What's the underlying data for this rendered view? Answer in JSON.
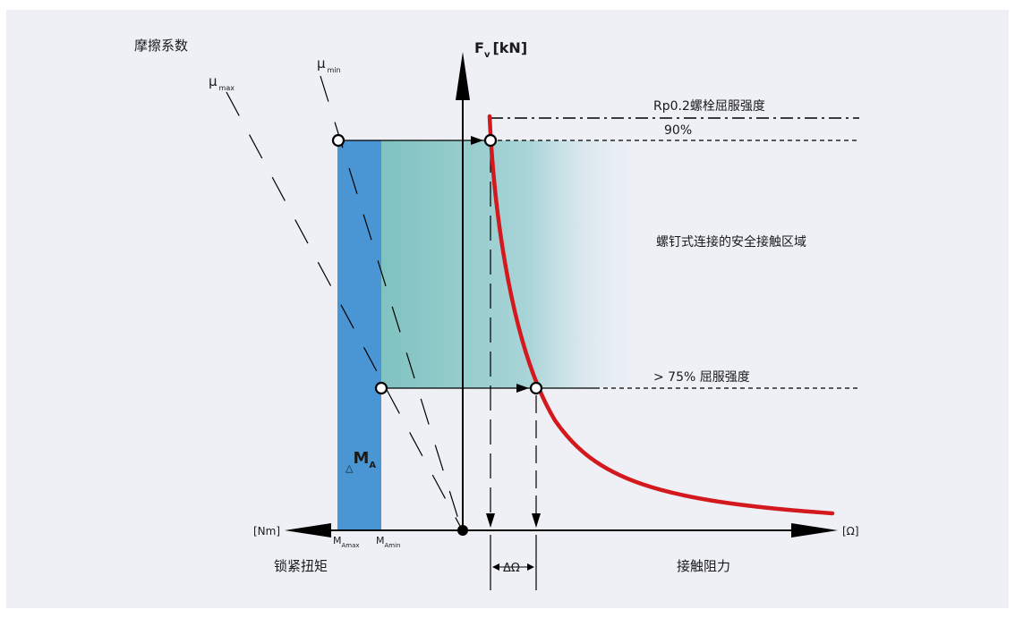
{
  "labels": {
    "friction_coefficient": "摩擦系数",
    "mu": "μ",
    "mu_max_sub": "max",
    "mu_min_sub": "min",
    "force_F": "F",
    "force_sub": "v",
    "force_unit": "[kN]",
    "yield_line": "Rp0.2螺栓屈服强度",
    "ninety_percent": "90%",
    "safe_zone": "螺钉式连接的安全接触区域",
    "seventy_five": "> 75% 屈服强度",
    "delta_symbol": "△",
    "delta_m": "M",
    "delta_m_sub": "A",
    "torque_unit": "[Nm]",
    "ma_M": "M",
    "ma_max_sub": "Amax",
    "ma_min_sub": "Amin",
    "omega_unit": "[Ω]",
    "delta_omega": "ΔΩ",
    "locking_torque": "锁紧扭矩",
    "contact_resistance": "接触阻力"
  },
  "colors": {
    "background": "#eef0f6",
    "torque_bar": "#4a95d3",
    "zone_gradient_start": "#7fc3c0",
    "zone_gradient_end": "#e6eef5",
    "curve": "#d4191e",
    "axis": "#000000"
  }
}
